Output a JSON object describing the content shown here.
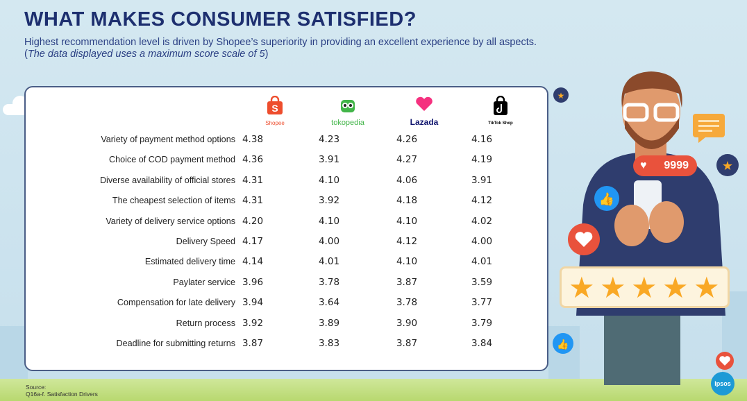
{
  "header": {
    "title": "WHAT MAKES CONSUMER SATISFIED?",
    "subtitle": "Highest recommendation level is driven by Shopee’s superiority in providing an excellent experience by all aspects.",
    "note": "The data displayed uses a maximum score scale of 5"
  },
  "brands": [
    {
      "name": "Shopee",
      "icon": "shopee-bag-icon",
      "color": "#ee4d2d"
    },
    {
      "name": "tokopedia",
      "icon": "tokopedia-owl-icon",
      "color": "#42b549"
    },
    {
      "name": "Lazada",
      "icon": "lazada-heart-icon",
      "color": "#0f146d"
    },
    {
      "name": "TikTok Shop",
      "icon": "tiktok-bag-icon",
      "color": "#000000"
    }
  ],
  "rows": [
    {
      "label": "Variety of payment method options",
      "values": [
        "4.38",
        "4.23",
        "4.26",
        "4.16"
      ]
    },
    {
      "label": "Choice of COD payment method",
      "values": [
        "4.36",
        "3.91",
        "4.27",
        "4.19"
      ]
    },
    {
      "label": "Diverse availability of official stores",
      "values": [
        "4.31",
        "4.10",
        "4.06",
        "3.91"
      ]
    },
    {
      "label": "The cheapest selection of items",
      "values": [
        "4.31",
        "3.92",
        "4.18",
        "4.12"
      ]
    },
    {
      "label": "Variety of delivery service options",
      "values": [
        "4.20",
        "4.10",
        "4.10",
        "4.02"
      ]
    },
    {
      "label": "Delivery Speed",
      "values": [
        "4.17",
        "4.00",
        "4.12",
        "4.00"
      ]
    },
    {
      "label": "Estimated delivery time",
      "values": [
        "4.14",
        "4.01",
        "4.10",
        "4.01"
      ]
    },
    {
      "label": "Paylater service",
      "values": [
        "3.96",
        "3.78",
        "3.87",
        "3.59"
      ]
    },
    {
      "label": "Compensation for late delivery",
      "values": [
        "3.94",
        "3.64",
        "3.78",
        "3.77"
      ]
    },
    {
      "label": "Return process",
      "values": [
        "3.92",
        "3.89",
        "3.90",
        "3.79"
      ]
    },
    {
      "label": "Deadline for submitting returns",
      "values": [
        "3.87",
        "3.83",
        "3.87",
        "3.84"
      ]
    }
  ],
  "source": {
    "label": "Source:",
    "text": "Q16a-f. Satisfaction Drivers"
  },
  "illustration": {
    "likes_count": "9999",
    "rating_stars": 5
  },
  "logo": "Ipsos"
}
